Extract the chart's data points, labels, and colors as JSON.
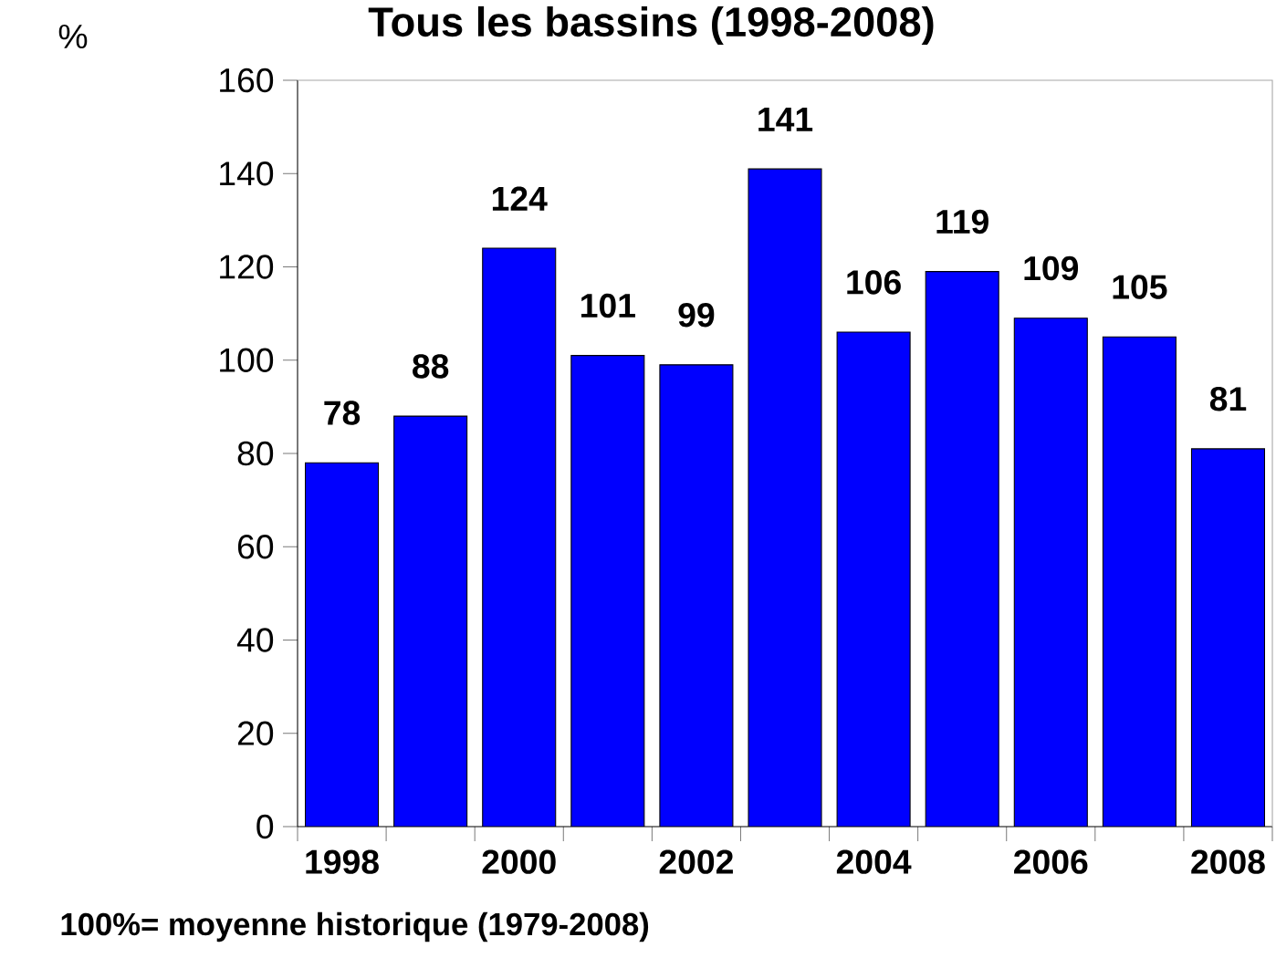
{
  "chart_data": {
    "type": "bar",
    "title": "Tous les bassins  (1998-2008)",
    "ylabel": "%",
    "categories": [
      "1998",
      null,
      "2000",
      null,
      "2002",
      null,
      "2004",
      null,
      "2006",
      null,
      "2008"
    ],
    "values": [
      78,
      88,
      124,
      101,
      99,
      141,
      106,
      119,
      109,
      105,
      81
    ],
    "color": "#0000ff",
    "data_labels": true,
    "grid": false,
    "ylim": [
      0,
      160
    ],
    "yticks": [
      0,
      20,
      40,
      60,
      80,
      100,
      120,
      140,
      160
    ],
    "annotations": [
      "100%= moyenne historique (1979-2008)"
    ]
  }
}
